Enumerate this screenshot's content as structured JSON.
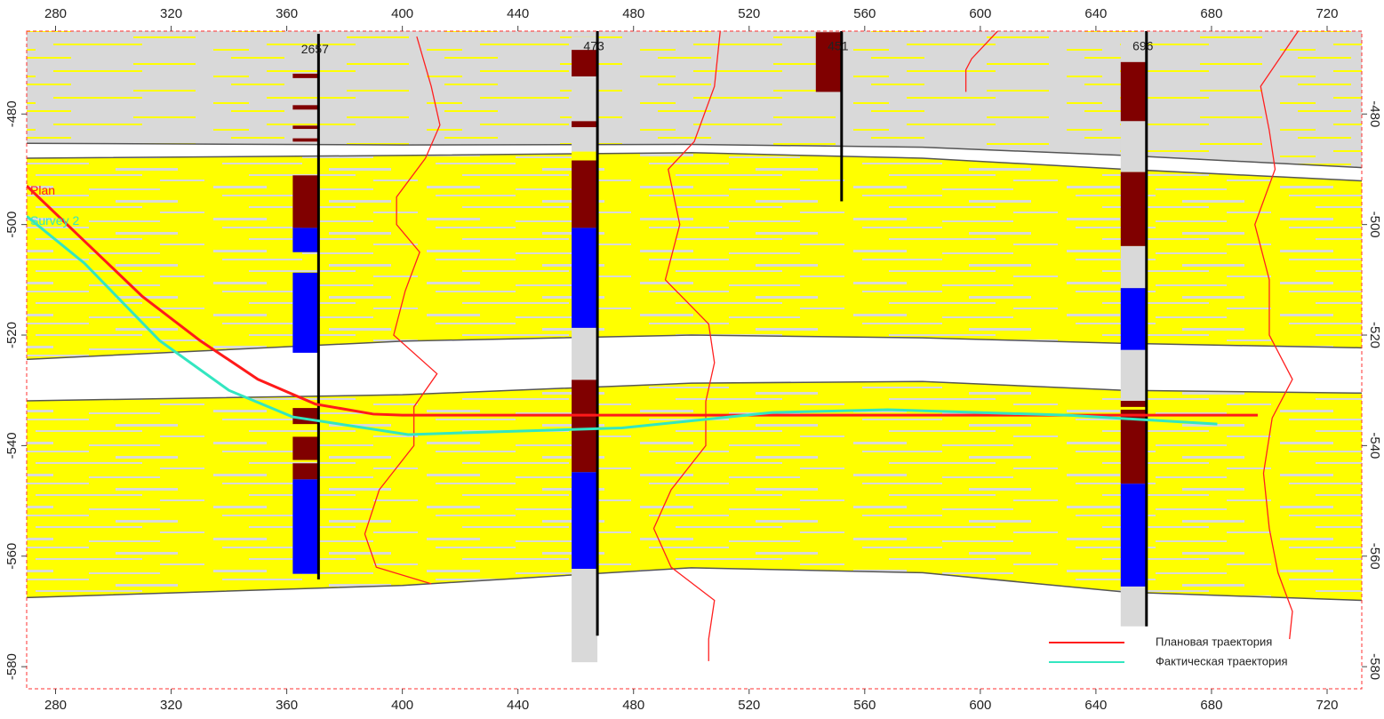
{
  "chart_data": {
    "type": "section",
    "xlim": [
      270,
      732
    ],
    "ylim": [
      -584,
      -465
    ],
    "xticks": [
      280,
      320,
      360,
      400,
      440,
      480,
      520,
      560,
      600,
      640,
      680,
      720
    ],
    "yticks": [
      -480,
      -500,
      -520,
      -540,
      -560,
      -580
    ],
    "horizons": {
      "x": [
        270,
        400,
        500,
        580,
        650,
        732
      ],
      "y": [
        [
          -485.3,
          -485.6,
          -485.5,
          -486,
          -487.5,
          -489.7
        ],
        [
          -488,
          -487.5,
          -487,
          -488,
          -490,
          -492.1
        ],
        [
          -524.4,
          -521.1,
          -520,
          -520.5,
          -521.5,
          -522.3
        ],
        [
          -531.9,
          -530.8,
          -528.7,
          -528.4,
          -530,
          -530.5
        ],
        [
          -567.5,
          -565.3,
          -562.1,
          -563,
          -566.5,
          -568
        ]
      ]
    },
    "wells": [
      {
        "name": "2657",
        "x": 371,
        "top": -465.5,
        "bottom": -564.2,
        "intervals": [
          {
            "top": -472.7,
            "bottom": -473.5,
            "color": "#800000"
          },
          {
            "top": -478.4,
            "bottom": -479.2,
            "color": "#800000"
          },
          {
            "top": -482.1,
            "bottom": -482.7,
            "color": "#800000"
          },
          {
            "top": -484.4,
            "bottom": -485,
            "color": "#800000"
          },
          {
            "top": -491.1,
            "bottom": -500.6,
            "color": "#800000"
          },
          {
            "top": -500.6,
            "bottom": -505,
            "color": "#0000ff"
          },
          {
            "top": -508.7,
            "bottom": -523.2,
            "color": "#0000ff"
          },
          {
            "top": -533.2,
            "bottom": -536.1,
            "color": "#800000"
          },
          {
            "top": -538.4,
            "bottom": -542.6,
            "color": "#800000"
          },
          {
            "top": -543.2,
            "bottom": -546.1,
            "color": "#800000"
          },
          {
            "top": -546.1,
            "bottom": -563.2,
            "color": "#0000ff"
          }
        ]
      },
      {
        "name": "473",
        "x": 467.5,
        "top": -465,
        "bottom": -574.4,
        "intervals": [
          {
            "top": -466,
            "bottom": -468,
            "color": "#d9d9d9"
          },
          {
            "top": -468.4,
            "bottom": -473.2,
            "color": "#800000"
          },
          {
            "top": -473.2,
            "bottom": -481.3,
            "color": "#d9d9d9"
          },
          {
            "top": -481.3,
            "bottom": -482.4,
            "color": "#800000"
          },
          {
            "top": -482.4,
            "bottom": -486.8,
            "color": "#d9d9d9"
          },
          {
            "top": -486.8,
            "bottom": -488.4,
            "color": "#ffff00"
          },
          {
            "top": -488.4,
            "bottom": -500.6,
            "color": "#800000"
          },
          {
            "top": -500.6,
            "bottom": -518.7,
            "color": "#0000ff"
          },
          {
            "top": -518.7,
            "bottom": -528.1,
            "color": "#d9d9d9"
          },
          {
            "top": -528.1,
            "bottom": -544.8,
            "color": "#800000"
          },
          {
            "top": -544.8,
            "bottom": -562.3,
            "color": "#0000ff"
          },
          {
            "top": -562.3,
            "bottom": -579.2,
            "color": "#d9d9d9"
          }
        ]
      },
      {
        "name": "451",
        "x": 552,
        "top": -465,
        "bottom": -495.8,
        "intervals": [
          {
            "top": -465.2,
            "bottom": -476,
            "color": "#800000"
          }
        ]
      },
      {
        "name": "696",
        "x": 657.5,
        "top": -465,
        "bottom": -572.7,
        "intervals": [
          {
            "top": -465.5,
            "bottom": -470.6,
            "color": "#d9d9d9"
          },
          {
            "top": -470.6,
            "bottom": -481.3,
            "color": "#800000"
          },
          {
            "top": -481.3,
            "bottom": -490.5,
            "color": "#d9d9d9"
          },
          {
            "top": -490.5,
            "bottom": -503.9,
            "color": "#800000"
          },
          {
            "top": -503.9,
            "bottom": -511.5,
            "color": "#d9d9d9"
          },
          {
            "top": -511.5,
            "bottom": -522.7,
            "color": "#0000ff"
          },
          {
            "top": -522.7,
            "bottom": -531.9,
            "color": "#d9d9d9"
          },
          {
            "top": -531.9,
            "bottom": -533,
            "color": "#800000"
          },
          {
            "top": -533.5,
            "bottom": -546.9,
            "color": "#800000"
          },
          {
            "top": -546.9,
            "bottom": -565.5,
            "color": "#0000ff"
          },
          {
            "top": -565.5,
            "bottom": -572.7,
            "color": "#d9d9d9"
          }
        ]
      }
    ],
    "logs": [
      {
        "y": [
          -466,
          -475,
          -482,
          -488,
          -495,
          -500,
          -505,
          -512,
          -520,
          -527,
          -533,
          -540,
          -548,
          -556,
          -562,
          -565
        ],
        "x": [
          405,
          410,
          413,
          408,
          398,
          398,
          406,
          401,
          397,
          412,
          404,
          404,
          392,
          387,
          391,
          410
        ]
      },
      {
        "y": [
          -465,
          -475,
          -485,
          -490,
          -500,
          -510,
          -518,
          -525,
          -532,
          -540,
          -548,
          -555,
          -562,
          -568,
          -575,
          -579
        ],
        "x": [
          510,
          508,
          501,
          492,
          496,
          491,
          506,
          508,
          505,
          505,
          493,
          487,
          493,
          508,
          506,
          506
        ]
      },
      {
        "y": [
          -465,
          -470,
          -472,
          -476
        ],
        "x": [
          606,
          597,
          595,
          595
        ]
      },
      {
        "y": [
          -465,
          -475,
          -483,
          -490,
          -500,
          -510,
          -520,
          -528,
          -535,
          -545,
          -555,
          -563,
          -570,
          -575
        ],
        "x": [
          710,
          697,
          700,
          702,
          695,
          700,
          700,
          708,
          701,
          698,
          700,
          703,
          708,
          707
        ]
      }
    ],
    "series": [
      {
        "name": "Плановая траектория",
        "label": "Plan",
        "color": "#ff1a1a",
        "x": [
          270,
          290,
          310,
          330,
          350,
          370,
          390,
          400,
          696
        ],
        "y": [
          -493,
          -503,
          -513,
          -521,
          -528,
          -532.5,
          -534.3,
          -534.5,
          -534.5
        ]
      },
      {
        "name": "Фактическая траектория",
        "label": "Survey 2",
        "color": "#33e6c0",
        "x": [
          270,
          290,
          316,
          340,
          362,
          402,
          476,
          528,
          568,
          630,
          682
        ],
        "y": [
          -498.5,
          -507,
          -521,
          -530,
          -534.8,
          -538,
          -536.8,
          -534,
          -533.5,
          -534.5,
          -536.1
        ]
      }
    ]
  }
}
